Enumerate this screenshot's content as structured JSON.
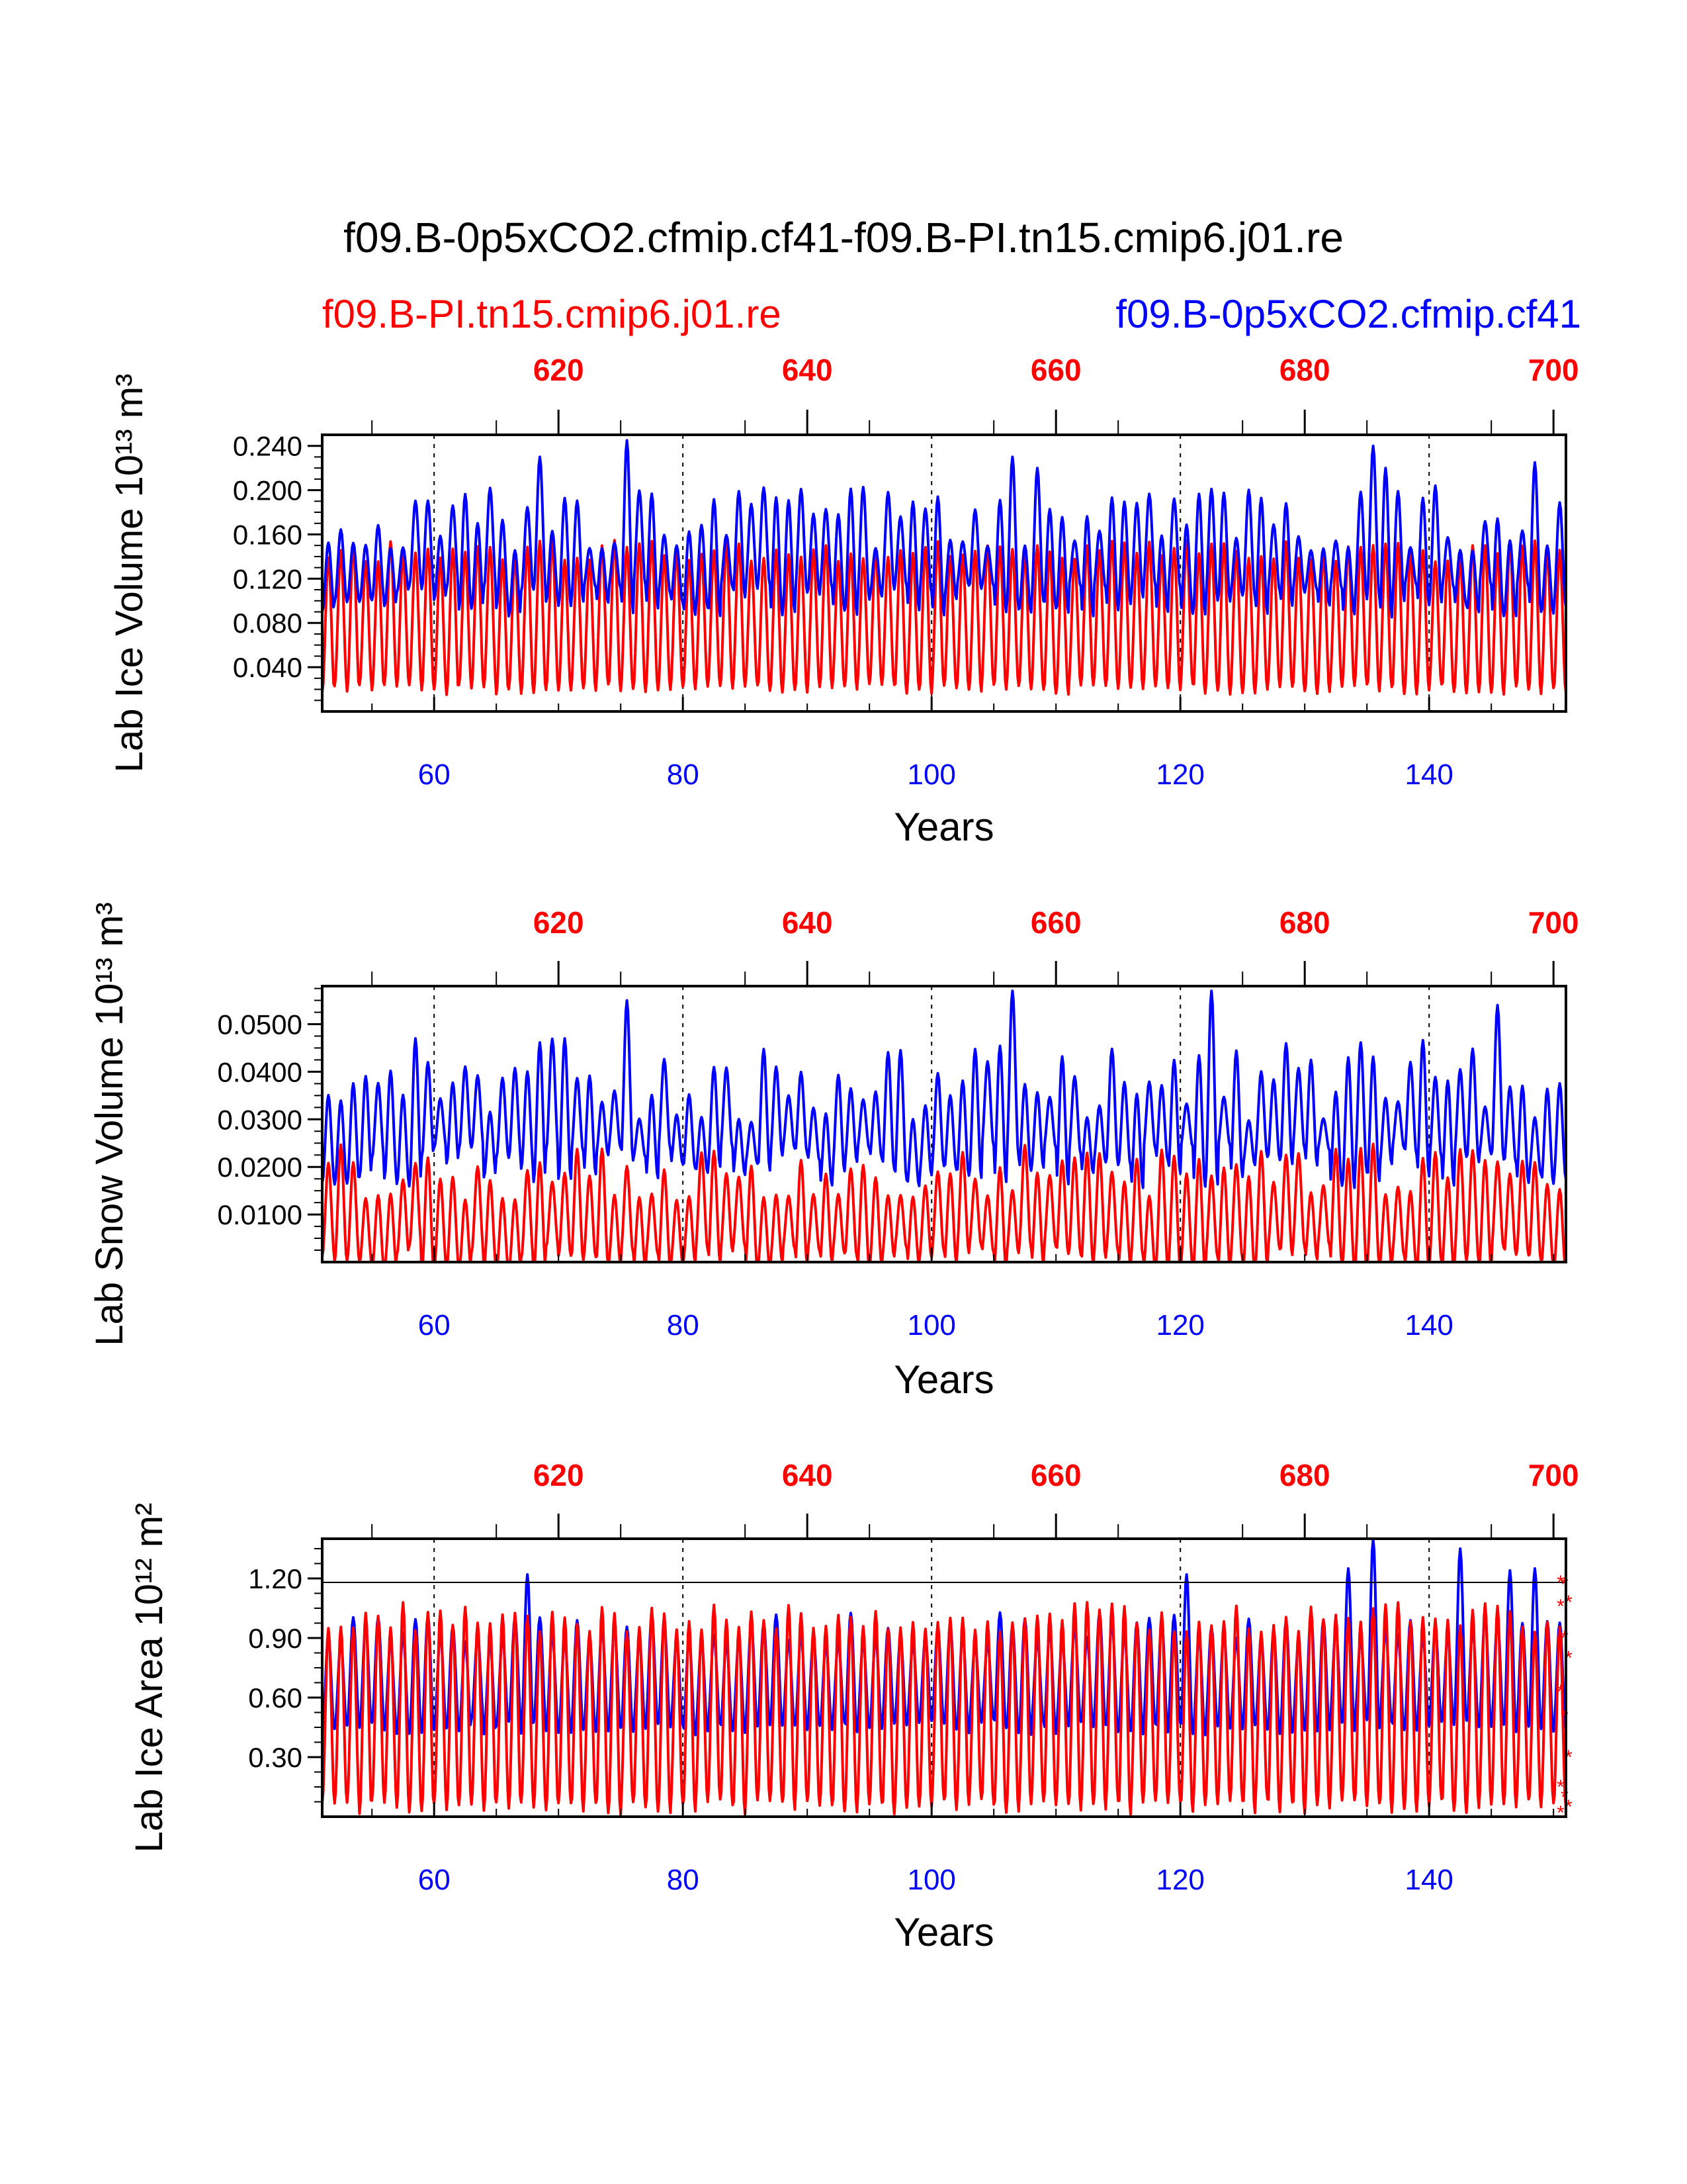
{
  "title": "f09.B-0p5xCO2.cfmip.cf41-f09.B-PI.tn15.cmip6.j01.re",
  "legend": {
    "left_label": "f09.B-PI.tn15.cmip6.j01.re",
    "right_label": "f09.B-0p5xCO2.cfmip.cf41"
  },
  "colors": {
    "ctrl": "#ff0000",
    "exp": "#0000ff",
    "axis": "#000000"
  },
  "chart_data": [
    {
      "type": "line",
      "ylabel": "Lab Ice Volume 10¹³ m³",
      "xlabel": "Years",
      "xlim": [
        51,
        151
      ],
      "ylim": [
        0.0,
        0.25
      ],
      "bottom_ticks": [
        "60",
        "80",
        "100",
        "120",
        "140"
      ],
      "bottom_tick_values": [
        60,
        80,
        100,
        120,
        140
      ],
      "top_ticks": [
        "620",
        "640",
        "660",
        "680",
        "700"
      ],
      "top_tick_values": [
        620,
        640,
        660,
        680,
        700
      ],
      "top_axis_offset": 550,
      "y_ticks": [
        "0.040",
        "0.080",
        "0.120",
        "0.160",
        "0.200",
        "0.240"
      ],
      "y_tick_values": [
        0.04,
        0.08,
        0.12,
        0.16,
        0.2,
        0.24
      ],
      "y_minor_step": 0.01,
      "series": [
        {
          "name": "f09.B-PI.tn15.cmip6.j01.re",
          "color": "#ff0000",
          "base_min": 0.02,
          "base_max": 0.145,
          "spread": 0.01,
          "seed": 11
        },
        {
          "name": "f09.B-0p5xCO2.cfmip.cf41",
          "color": "#0000ff",
          "base_min": 0.1,
          "base_max": 0.175,
          "spread": 0.03,
          "seed": 23,
          "peaks": [
            [
              75,
              0.245
            ],
            [
              135,
              0.24
            ],
            [
              68,
              0.23
            ],
            [
              106,
              0.23
            ],
            [
              108,
              0.22
            ],
            [
              136,
              0.22
            ],
            [
              148,
              0.225
            ]
          ]
        }
      ]
    },
    {
      "type": "line",
      "ylabel": "Lab Snow Volume 10¹³ m³",
      "xlabel": "Years",
      "xlim": [
        51,
        151
      ],
      "ylim": [
        0.0,
        0.058
      ],
      "bottom_ticks": [
        "60",
        "80",
        "100",
        "120",
        "140"
      ],
      "bottom_tick_values": [
        60,
        80,
        100,
        120,
        140
      ],
      "top_ticks": [
        "620",
        "640",
        "660",
        "680",
        "700"
      ],
      "top_tick_values": [
        620,
        640,
        660,
        680,
        700
      ],
      "top_axis_offset": 550,
      "y_ticks": [
        "0.0100",
        "0.0200",
        "0.0300",
        "0.0400",
        "0.0500"
      ],
      "y_tick_values": [
        0.01,
        0.02,
        0.03,
        0.04,
        0.05
      ],
      "y_minor_step": 0.0025,
      "series": [
        {
          "name": "f09.B-PI.tn15.cmip6.j01.re",
          "color": "#ff0000",
          "base_min": 0.0005,
          "base_max": 0.019,
          "spread": 0.006,
          "seed": 31
        },
        {
          "name": "f09.B-0p5xCO2.cfmip.cf41",
          "color": "#0000ff",
          "base_min": 0.02,
          "base_max": 0.038,
          "spread": 0.009,
          "seed": 47,
          "peaks": [
            [
              106,
              0.057
            ],
            [
              122,
              0.057
            ],
            [
              75,
              0.055
            ],
            [
              145,
              0.054
            ],
            [
              58,
              0.047
            ],
            [
              70,
              0.047
            ]
          ]
        }
      ]
    },
    {
      "type": "line",
      "ylabel": "Lab Ice Area 10¹² m²",
      "xlabel": "Years",
      "xlim": [
        51,
        151
      ],
      "ylim": [
        0.0,
        1.4
      ],
      "bottom_ticks": [
        "60",
        "80",
        "100",
        "120",
        "140"
      ],
      "bottom_tick_values": [
        60,
        80,
        100,
        120,
        140
      ],
      "top_ticks": [
        "620",
        "640",
        "660",
        "680",
        "700"
      ],
      "top_tick_values": [
        620,
        640,
        660,
        680,
        700
      ],
      "top_axis_offset": 550,
      "y_ticks": [
        "0.30",
        "0.60",
        "0.90",
        "1.20"
      ],
      "y_tick_values": [
        0.3,
        0.6,
        0.9,
        1.2
      ],
      "y_minor_step": 0.075,
      "hline": 1.18,
      "series": [
        {
          "name": "f09.B-0p5xCO2.cfmip.cf41",
          "color": "#0000ff",
          "base_min": 0.45,
          "base_max": 0.95,
          "spread": 0.08,
          "seed": 59,
          "peaks": [
            [
              135,
              1.4
            ],
            [
              142,
              1.35
            ],
            [
              133,
              1.25
            ],
            [
              67,
              1.22
            ],
            [
              120,
              1.22
            ],
            [
              146,
              1.24
            ],
            [
              148,
              1.25
            ]
          ]
        },
        {
          "name": "f09.B-PI.tn15.cmip6.j01.re",
          "color": "#ff0000",
          "base_min": 0.05,
          "base_max": 1.0,
          "spread": 0.08,
          "seed": 71
        }
      ],
      "markers": [
        1.18,
        1.17,
        1.08,
        1.06,
        0.9,
        0.8,
        0.63,
        0.5,
        0.3,
        0.15,
        0.1,
        0.05,
        0.02
      ]
    }
  ]
}
